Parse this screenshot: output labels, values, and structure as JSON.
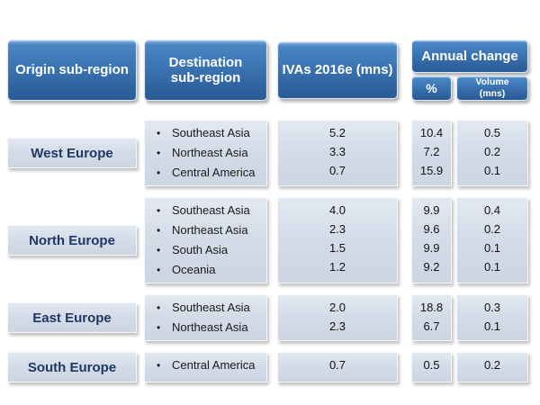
{
  "colors": {
    "header_blue_top": "#4a86c4",
    "header_blue_bottom": "#2a5c96",
    "cell_background": "#d4dce8",
    "region_label_text": "#1f3864",
    "value_text": "#111111",
    "page_background": "#ffffff"
  },
  "header": {
    "origin": "Origin sub-region",
    "destination": "Destination sub-region",
    "ivas": "IVAs 2016e (mns)",
    "annual_change": "Annual change",
    "percent": "%",
    "volume": "Volume (mns)"
  },
  "rows": [
    {
      "origin": "West Europe",
      "destinations": [
        "Southeast Asia",
        "Northeast Asia",
        "Central America"
      ],
      "ivas": [
        "5.2",
        "3.3",
        "0.7"
      ],
      "percent": [
        "10.4",
        "7.2",
        "15.9"
      ],
      "volume": [
        "0.5",
        "0.2",
        "0.1"
      ]
    },
    {
      "origin": "North Europe",
      "destinations": [
        "Southeast Asia",
        "Northeast Asia",
        "South Asia",
        "Oceania"
      ],
      "ivas": [
        "4.0",
        "2.3",
        "1.5",
        "1.2"
      ],
      "percent": [
        "9.9",
        "9.6",
        "9.9",
        "9.2"
      ],
      "volume": [
        "0.4",
        "0.2",
        "0.1",
        "0.1"
      ]
    },
    {
      "origin": "East Europe",
      "destinations": [
        "Southeast Asia",
        "Northeast Asia"
      ],
      "ivas": [
        "2.0",
        "2.3"
      ],
      "percent": [
        "18.8",
        "6.7"
      ],
      "volume": [
        "0.3",
        "0.1"
      ]
    },
    {
      "origin": "South Europe",
      "destinations": [
        "Central America"
      ],
      "ivas": [
        "0.7"
      ],
      "percent": [
        "0.5"
      ],
      "volume": [
        "0.2"
      ]
    }
  ],
  "chart_data": {
    "type": "table",
    "columns": [
      "Origin sub-region",
      "Destination sub-region",
      "IVAs 2016e (mns)",
      "Annual change %",
      "Annual change Volume (mns)"
    ],
    "rows": [
      [
        "West Europe",
        "Southeast Asia",
        5.2,
        10.4,
        0.5
      ],
      [
        "West Europe",
        "Northeast Asia",
        3.3,
        7.2,
        0.2
      ],
      [
        "West Europe",
        "Central America",
        0.7,
        15.9,
        0.1
      ],
      [
        "North Europe",
        "Southeast Asia",
        4.0,
        9.9,
        0.4
      ],
      [
        "North Europe",
        "Northeast Asia",
        2.3,
        9.6,
        0.2
      ],
      [
        "North Europe",
        "South Asia",
        1.5,
        9.9,
        0.1
      ],
      [
        "North Europe",
        "Oceania",
        1.2,
        9.2,
        0.1
      ],
      [
        "East Europe",
        "Southeast Asia",
        2.0,
        18.8,
        0.3
      ],
      [
        "East Europe",
        "Northeast Asia",
        2.3,
        6.7,
        0.1
      ],
      [
        "South Europe",
        "Central America",
        0.7,
        0.5,
        0.2
      ]
    ]
  }
}
